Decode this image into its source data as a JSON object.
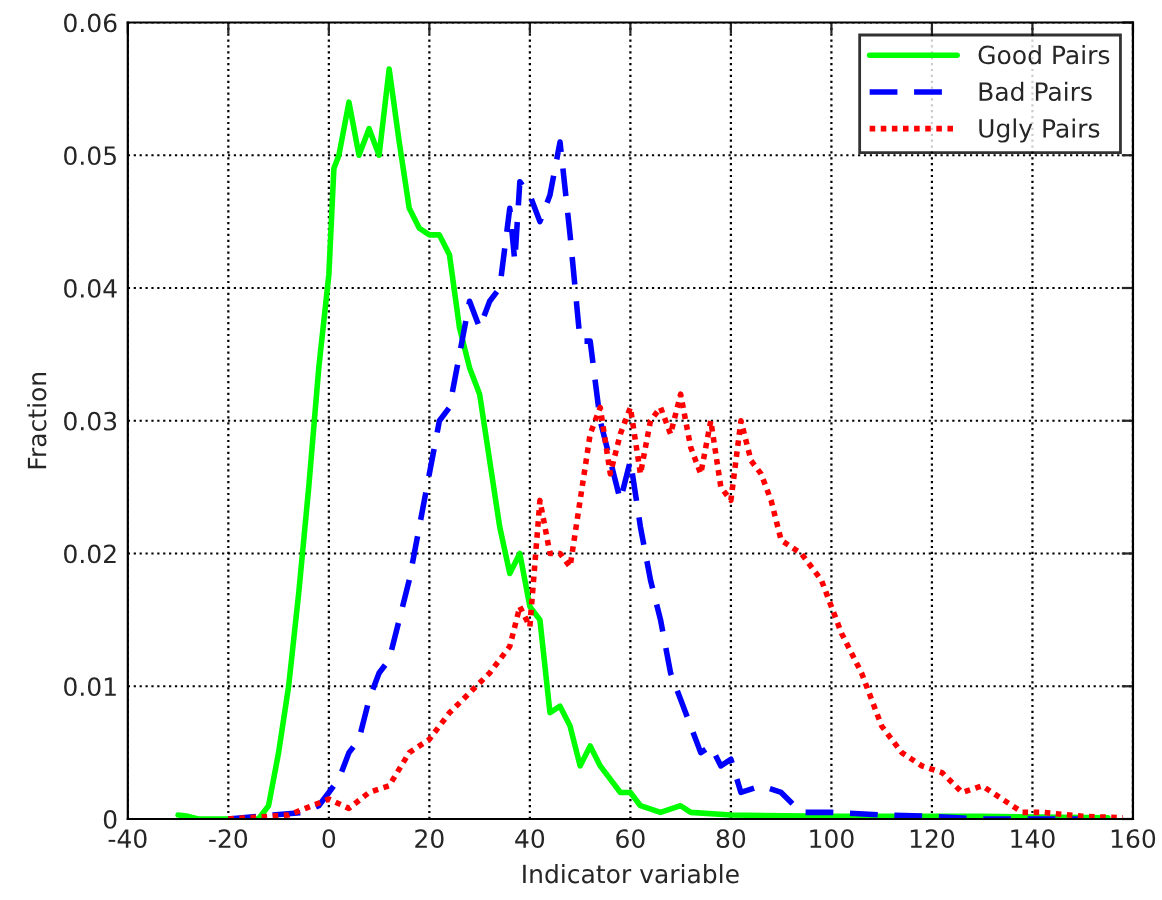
{
  "chart_data": {
    "type": "line",
    "xlabel": "Indicator variable",
    "ylabel": "Fraction",
    "xlim": [
      -40,
      160
    ],
    "xticks": [
      -40,
      -20,
      0,
      20,
      40,
      60,
      80,
      100,
      120,
      140,
      160
    ],
    "ylim": [
      0,
      0.06
    ],
    "yticks": [
      0,
      0.01,
      0.02,
      0.03,
      0.04,
      0.05,
      0.06
    ],
    "grid": true,
    "legend": "top right",
    "series": [
      {
        "name": "Good Pairs",
        "color": "#00ff00",
        "line_style": "solid",
        "x": [
          -30,
          -28,
          -26,
          -14,
          -12,
          -10,
          -8,
          -6,
          -4,
          -2,
          0,
          1,
          2,
          4,
          6,
          8,
          10,
          12,
          14,
          16,
          18,
          20,
          22,
          24,
          26,
          28,
          30,
          32,
          34,
          36,
          38,
          40,
          42,
          44,
          46,
          48,
          50,
          52,
          54,
          56,
          58,
          60,
          62,
          66,
          70,
          72,
          80,
          100,
          130,
          155
        ],
        "values": [
          0.0003,
          0.0002,
          0,
          0,
          0.001,
          0.005,
          0.01,
          0.017,
          0.025,
          0.034,
          0.041,
          0.049,
          0.05,
          0.054,
          0.05,
          0.052,
          0.05,
          0.0565,
          0.051,
          0.046,
          0.0445,
          0.044,
          0.044,
          0.0425,
          0.037,
          0.034,
          0.032,
          0.027,
          0.022,
          0.0185,
          0.02,
          0.016,
          0.015,
          0.008,
          0.0085,
          0.007,
          0.004,
          0.0055,
          0.004,
          0.003,
          0.002,
          0.002,
          0.001,
          0.0005,
          0.001,
          0.0005,
          0.0003,
          0.0002,
          0.0002,
          0.0001
        ]
      },
      {
        "name": "Bad Pairs",
        "color": "#0000ff",
        "line_style": "dashed",
        "x": [
          -20,
          -5,
          -2,
          0,
          2,
          4,
          6,
          8,
          10,
          12,
          14,
          16,
          18,
          20,
          22,
          24,
          26,
          28,
          30,
          32,
          34,
          36,
          37,
          38,
          40,
          42,
          44,
          46,
          48,
          50,
          52,
          54,
          56,
          58,
          60,
          62,
          64,
          66,
          68,
          70,
          72,
          74,
          76,
          78,
          80,
          82,
          86,
          90,
          94,
          100,
          110,
          120,
          130,
          150
        ],
        "values": [
          0,
          0.0005,
          0.001,
          0.002,
          0.003,
          0.005,
          0.006,
          0.009,
          0.011,
          0.012,
          0.015,
          0.018,
          0.022,
          0.026,
          0.03,
          0.031,
          0.035,
          0.039,
          0.037,
          0.039,
          0.04,
          0.046,
          0.042,
          0.048,
          0.047,
          0.045,
          0.047,
          0.051,
          0.044,
          0.036,
          0.036,
          0.03,
          0.027,
          0.024,
          0.027,
          0.022,
          0.018,
          0.015,
          0.011,
          0.009,
          0.007,
          0.005,
          0.0055,
          0.004,
          0.0045,
          0.002,
          0.0025,
          0.002,
          0.0005,
          0.0005,
          0.0003,
          0.0002,
          0,
          0
        ]
      },
      {
        "name": "Ugly Pairs",
        "color": "#ff0000",
        "line_style": "dotted",
        "x": [
          -20,
          -8,
          0,
          4,
          8,
          12,
          16,
          20,
          24,
          28,
          32,
          36,
          38,
          40,
          42,
          44,
          46,
          48,
          50,
          52,
          54,
          56,
          58,
          60,
          62,
          64,
          66,
          68,
          70,
          72,
          74,
          76,
          78,
          80,
          82,
          84,
          86,
          88,
          90,
          94,
          98,
          102,
          106,
          110,
          114,
          118,
          122,
          126,
          130,
          134,
          138,
          142,
          150,
          158
        ],
        "values": [
          0,
          0.0003,
          0.0015,
          0.0008,
          0.002,
          0.0025,
          0.005,
          0.006,
          0.008,
          0.0095,
          0.011,
          0.013,
          0.016,
          0.0145,
          0.024,
          0.02,
          0.02,
          0.019,
          0.024,
          0.029,
          0.031,
          0.026,
          0.029,
          0.031,
          0.026,
          0.03,
          0.031,
          0.029,
          0.032,
          0.028,
          0.026,
          0.03,
          0.025,
          0.024,
          0.03,
          0.027,
          0.026,
          0.024,
          0.021,
          0.02,
          0.018,
          0.014,
          0.011,
          0.007,
          0.005,
          0.004,
          0.0035,
          0.002,
          0.0025,
          0.0015,
          0.0005,
          0.0005,
          0.0002,
          0.0001
        ]
      }
    ]
  }
}
